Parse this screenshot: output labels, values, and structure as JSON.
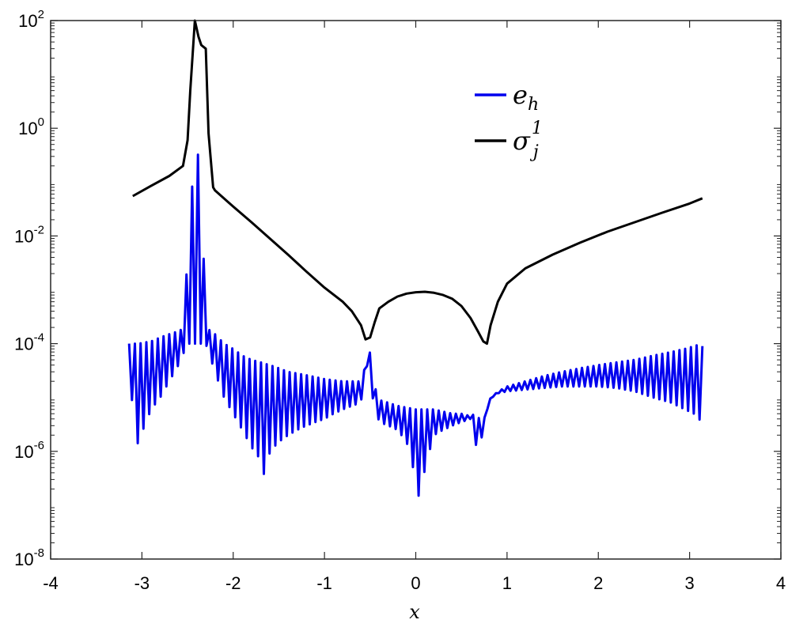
{
  "chart_data": {
    "type": "line",
    "xlabel": "x",
    "ylabel": "",
    "xlim": [
      -4,
      4
    ],
    "ylim": [
      1e-08,
      100
    ],
    "yscale": "log",
    "grid": false,
    "legend_placement": "top-right-center",
    "x_ticks": [
      "-4",
      "-3",
      "-2",
      "-1",
      "0",
      "1",
      "2",
      "3",
      "4"
    ],
    "y_ticks": [
      {
        "base": "10",
        "exp": "-8"
      },
      {
        "base": "10",
        "exp": "-6"
      },
      {
        "base": "10",
        "exp": "-4"
      },
      {
        "base": "10",
        "exp": "-2"
      },
      {
        "base": "10",
        "exp": "0"
      },
      {
        "base": "10",
        "exp": "2"
      }
    ],
    "series": [
      {
        "name": "e_h",
        "legend": {
          "base": "e",
          "sub": "h",
          "sup": ""
        },
        "color": "#0000ee",
        "lower_envelope": {
          "x": [
            -3.14,
            -3.08,
            -3.04,
            -2.9,
            -2.8,
            -2.7,
            -2.6,
            -2.5,
            -2.4,
            -2.33,
            -2.3,
            -2.2,
            -2.1,
            -2.0,
            -1.9,
            -1.8,
            -1.7,
            -1.65,
            -1.63,
            -1.6,
            -1.5,
            -1.4,
            -1.3,
            -1.2,
            -1.1,
            -1.0,
            -0.9,
            -0.8,
            -0.7,
            -0.6,
            -0.55,
            -0.5,
            -0.45,
            -0.4,
            -0.3,
            -0.2,
            -0.1,
            -0.05,
            0.0,
            0.05,
            0.1,
            0.15,
            0.2,
            0.3,
            0.4,
            0.5,
            0.6,
            0.65,
            0.7,
            0.75,
            0.8,
            0.9,
            1.0,
            1.2,
            1.4,
            1.6,
            1.8,
            2.0,
            2.2,
            2.4,
            2.6,
            2.8,
            2.95,
            3.05,
            3.1,
            3.14
          ],
          "y": [
            0.0001,
            1e-06,
            1.5e-06,
            6e-06,
            1e-05,
            2e-05,
            4e-05,
            0.0001,
            0.0001,
            0.0001,
            0.0001,
            3e-05,
            1e-05,
            5e-06,
            2.5e-06,
            1.2e-06,
            7e-07,
            3e-07,
            1.4e-07,
            1e-06,
            1.5e-06,
            2e-06,
            2.5e-06,
            3e-06,
            3.5e-06,
            4e-06,
            5e-06,
            6e-06,
            7e-06,
            8e-06,
            6e-05,
            1.5e-05,
            7e-06,
            3.5e-06,
            3e-06,
            2.5e-06,
            1.5e-06,
            7e-07,
            3e-07,
            1e-07,
            5e-07,
            1e-06,
            2e-06,
            2.5e-06,
            3e-06,
            3.5e-06,
            4e-06,
            1.3e-06,
            1.4e-06,
            2.5e-06,
            9e-06,
            1.2e-05,
            1.3e-05,
            1.4e-05,
            1.5e-05,
            1.6e-05,
            1.6e-05,
            1.6e-05,
            1.5e-05,
            1.3e-05,
            1e-05,
            8e-06,
            6e-06,
            5e-06,
            4e-06,
            3.5e-06
          ]
        },
        "upper_envelope": {
          "x": [
            -3.14,
            -3.08,
            -3.04,
            -2.9,
            -2.8,
            -2.7,
            -2.6,
            -2.55,
            -2.5,
            -2.45,
            -2.4,
            -2.35,
            -2.3,
            -2.2,
            -2.1,
            -2.0,
            -1.9,
            -1.8,
            -1.7,
            -1.6,
            -1.5,
            -1.4,
            -1.3,
            -1.2,
            -1.1,
            -1.0,
            -0.9,
            -0.8,
            -0.7,
            -0.6,
            -0.55,
            -0.5,
            -0.45,
            -0.4,
            -0.3,
            -0.2,
            -0.1,
            0.0,
            0.1,
            0.2,
            0.3,
            0.4,
            0.5,
            0.6,
            0.65,
            0.7,
            0.75,
            0.8,
            0.9,
            1.0,
            1.2,
            1.4,
            1.6,
            1.8,
            2.0,
            2.2,
            2.4,
            2.6,
            2.8,
            2.95,
            3.05,
            3.1,
            3.14
          ],
          "y": [
            0.0001,
            0.0001,
            0.0001,
            0.00011,
            0.00013,
            0.00015,
            0.00017,
            0.00019,
            0.004,
            0.08,
            0.5,
            0.1,
            0.0002,
            0.00015,
            0.0001,
            8e-05,
            6e-05,
            5e-05,
            4.5e-05,
            4e-05,
            3.5e-05,
            3e-05,
            2.8e-05,
            2.6e-05,
            2.4e-05,
            2.2e-05,
            2.1e-05,
            2e-05,
            2e-05,
            2e-05,
            4e-05,
            7e-05,
            1.6e-05,
            9e-06,
            8e-06,
            7e-06,
            6.5e-06,
            6e-06,
            6e-06,
            6e-06,
            5.5e-06,
            5e-06,
            5e-06,
            4.5e-06,
            5e-06,
            4e-06,
            4e-06,
            9e-06,
            1.3e-05,
            1.6e-05,
            2e-05,
            2.5e-05,
            3e-05,
            3.5e-05,
            4e-05,
            4.5e-05,
            5e-05,
            6e-05,
            7e-05,
            8e-05,
            9e-05,
            9.5e-05,
            9e-05
          ]
        }
      },
      {
        "name": "sigma_j^1",
        "legend": {
          "base": "σ",
          "sub": "j",
          "sup": "1"
        },
        "color": "#000000",
        "x": [
          -3.1,
          -2.9,
          -2.7,
          -2.55,
          -2.5,
          -2.47,
          -2.42,
          -2.38,
          -2.35,
          -2.3,
          -2.27,
          -2.22,
          -2.2,
          -2.0,
          -1.8,
          -1.6,
          -1.4,
          -1.2,
          -1.0,
          -0.8,
          -0.7,
          -0.6,
          -0.55,
          -0.5,
          -0.45,
          -0.4,
          -0.3,
          -0.2,
          -0.1,
          0.0,
          0.1,
          0.2,
          0.3,
          0.4,
          0.5,
          0.6,
          0.68,
          0.74,
          0.78,
          0.82,
          0.9,
          1.0,
          1.2,
          1.5,
          1.8,
          2.1,
          2.4,
          2.7,
          3.0,
          3.14
        ],
        "y": [
          0.055,
          0.085,
          0.13,
          0.2,
          0.6,
          5,
          100,
          50,
          35,
          30,
          0.8,
          0.08,
          0.07,
          0.035,
          0.018,
          0.009,
          0.0045,
          0.0022,
          0.0011,
          0.0006,
          0.0004,
          0.00022,
          0.00012,
          0.00013,
          0.00025,
          0.00045,
          0.0006,
          0.00075,
          0.00085,
          0.0009,
          0.00092,
          0.00088,
          0.0008,
          0.00068,
          0.0005,
          0.0003,
          0.00017,
          0.00011,
          0.0001,
          0.00022,
          0.0006,
          0.0013,
          0.0025,
          0.0045,
          0.0075,
          0.012,
          0.018,
          0.027,
          0.04,
          0.05
        ]
      }
    ]
  }
}
